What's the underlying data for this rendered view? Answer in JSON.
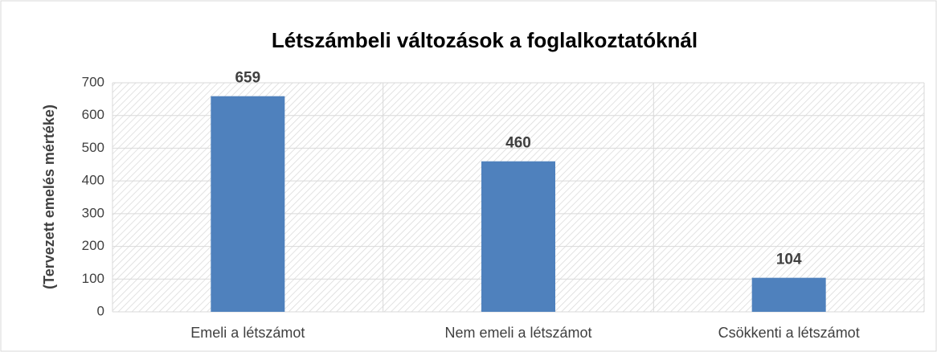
{
  "chart_data": {
    "type": "bar",
    "title": "Létszámbeli változások a foglalkoztatóknál",
    "y_label": "(Tervezett emelés mértéke)",
    "categories": [
      "Emeli a létszámot",
      "Nem emeli a létszámot",
      "Csökkenti a létszámot"
    ],
    "values": [
      659,
      460,
      104
    ],
    "color": "#4f81bd",
    "ylim": [
      0,
      700
    ],
    "yticks": [
      0,
      100,
      200,
      300,
      400,
      500,
      600,
      700
    ],
    "grid": true
  }
}
